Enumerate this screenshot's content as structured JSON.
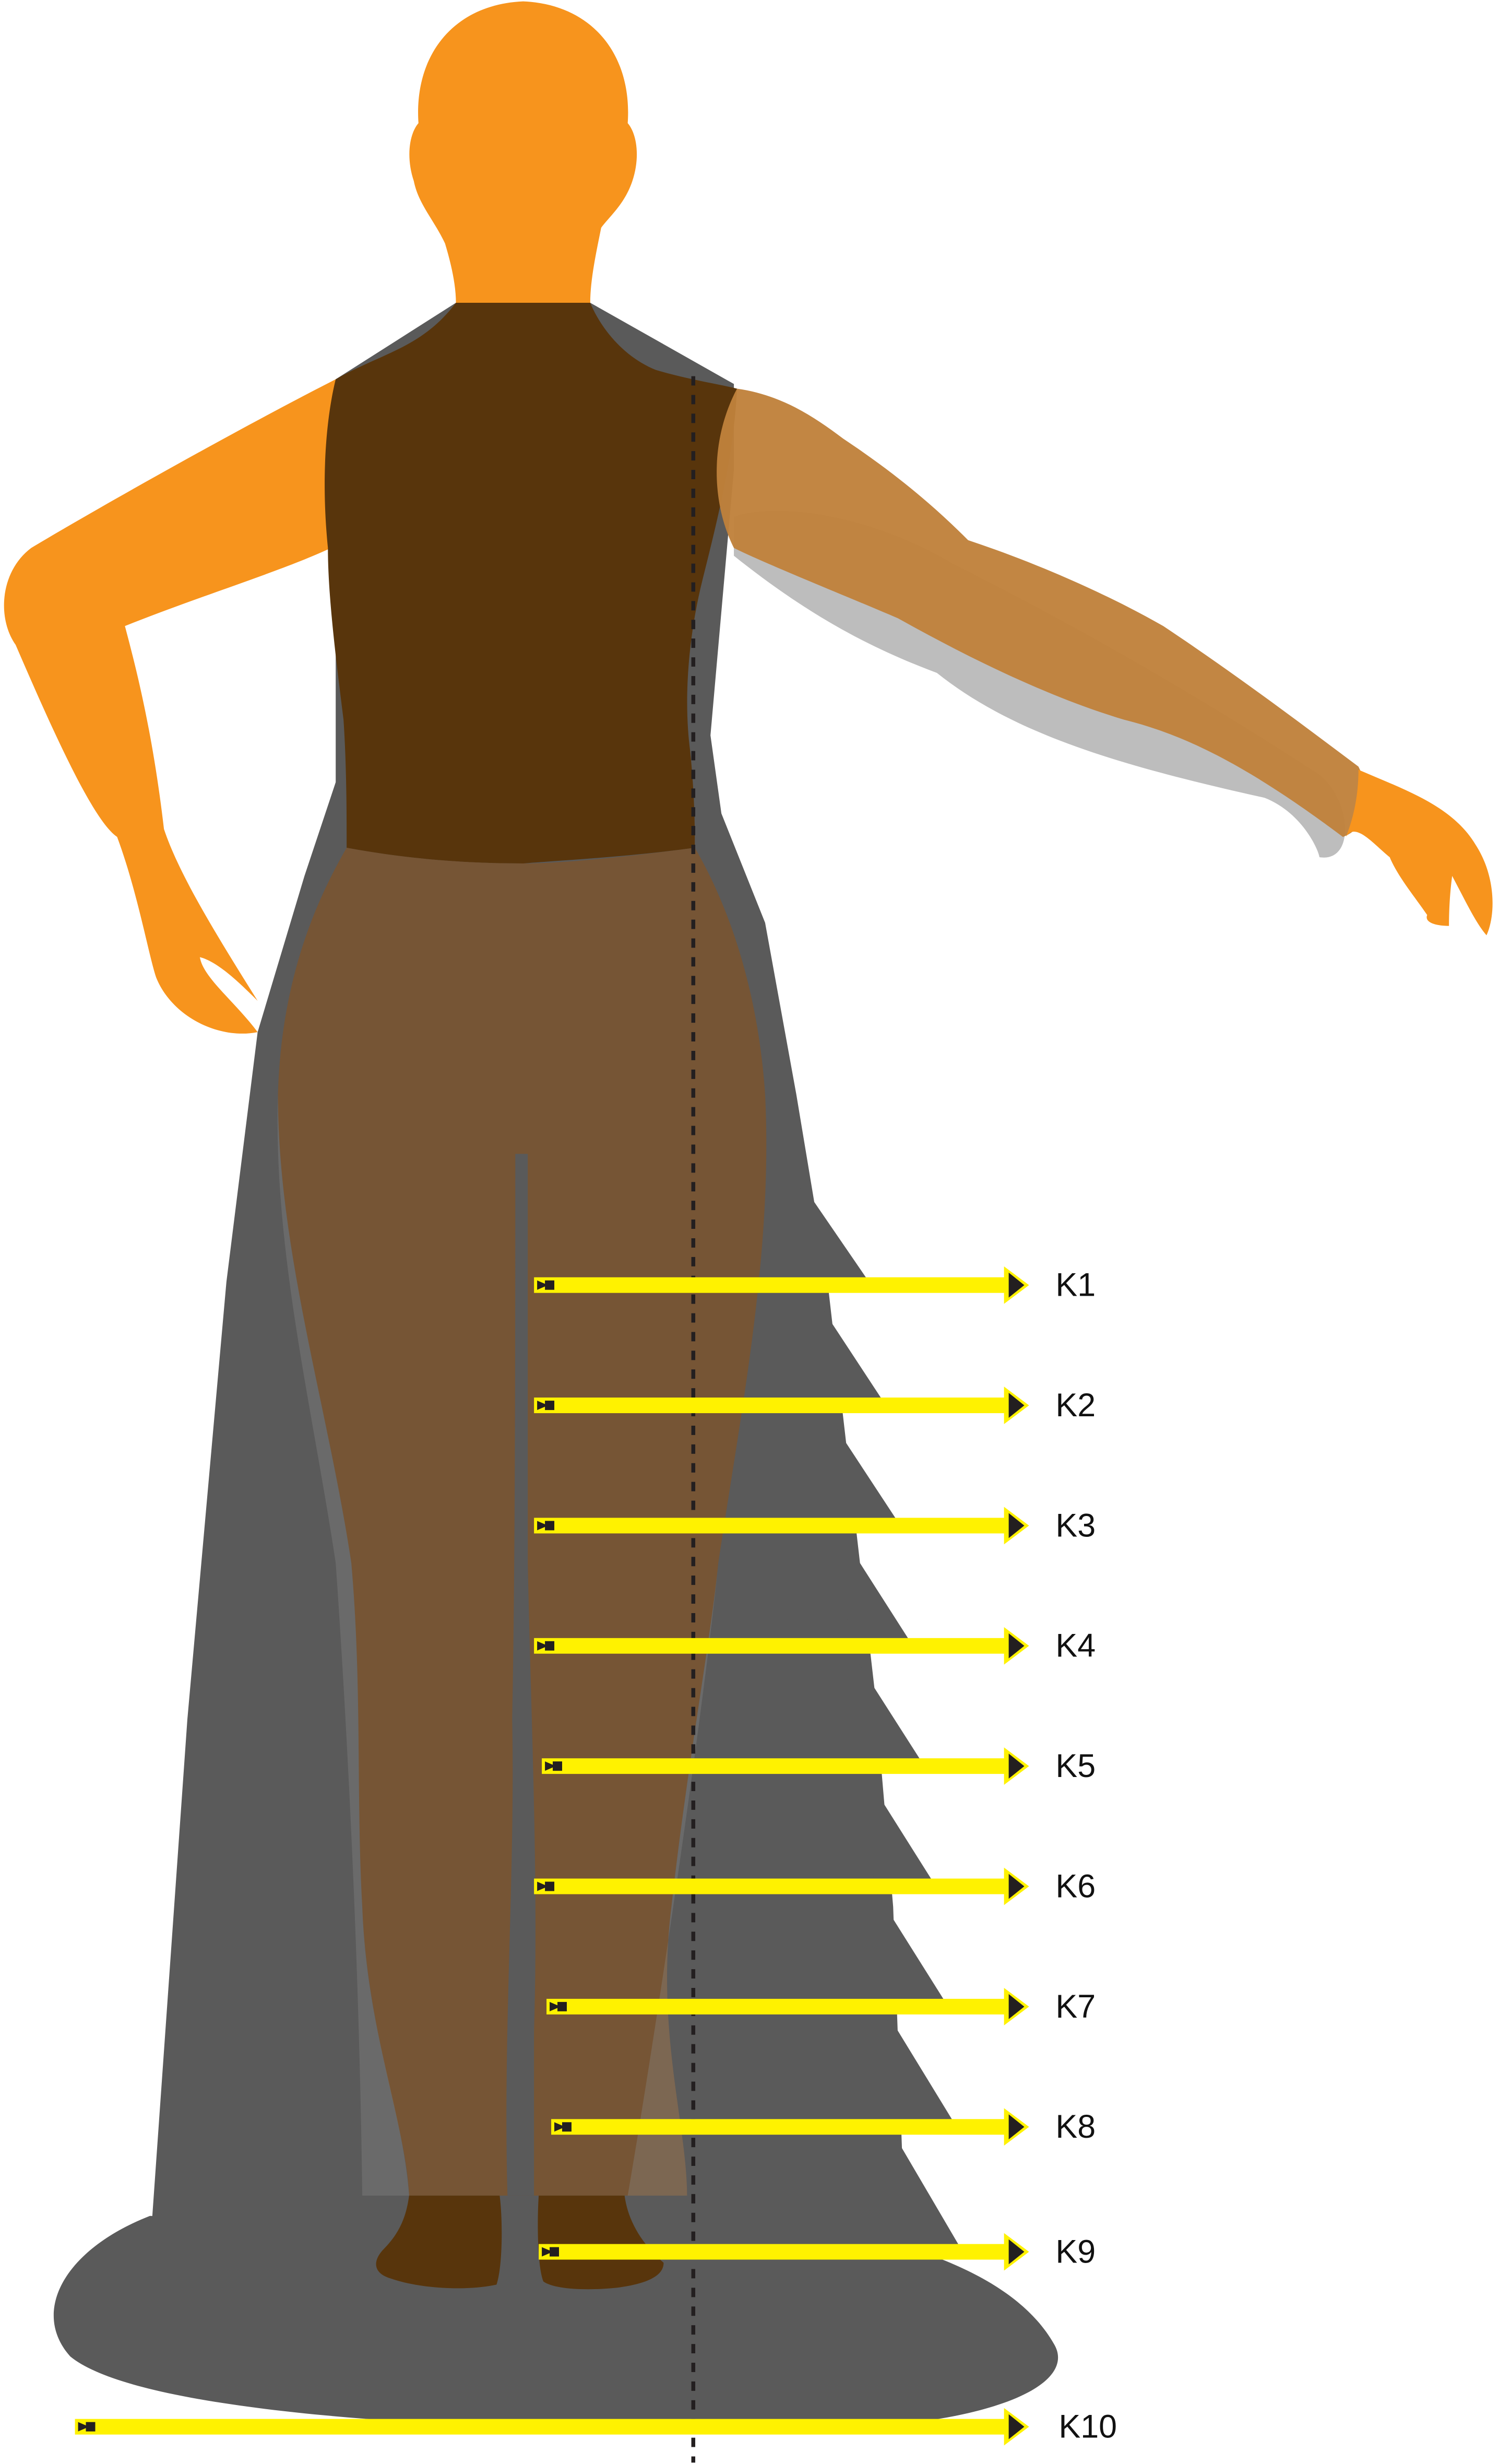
{
  "diagram": {
    "labels": [
      "K1",
      "K2",
      "K3",
      "K4",
      "K5",
      "K6",
      "K7",
      "K8",
      "K9",
      "K10"
    ]
  },
  "colors": {
    "skin": "#F7941D",
    "skin_translucent": "#C0813B",
    "bodice": "#58350C",
    "legs": "#765535",
    "gown": "#5A5A5A",
    "shadow": "#BDBDBD",
    "arrow": "#FFF200",
    "arrow_outline": "#231F20",
    "center_line": "#231F20"
  }
}
